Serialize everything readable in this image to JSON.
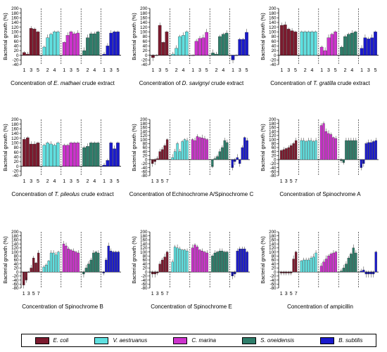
{
  "colors": {
    "E. coli": "#7b1a2e",
    "V. aestruanus": "#5fe0e0",
    "C. marina": "#cc33cc",
    "S. oneidensis": "#2e7d6a",
    "B. subtilis": "#1a1acc"
  },
  "legend": [
    "E. coli",
    "V. aestruanus",
    "C. marina",
    "S. oneidensis",
    "B. subtilis"
  ],
  "chart_data": [
    {
      "type": "bar",
      "ylabel": "Bacterial growth (%)",
      "ylim": [
        -40,
        200
      ],
      "yticks": [
        -40,
        -20,
        0,
        20,
        40,
        60,
        80,
        100,
        120,
        140,
        160,
        180,
        200
      ],
      "title_prefix": "Concentration of ",
      "title_italic": "E. mathaei",
      "title_suffix": " crude extract",
      "series": [
        {
          "name": "E. coli",
          "values": [
            12,
            5,
            115,
            112,
            100
          ],
          "ticklabels": [
            "1",
            "3",
            "5"
          ]
        },
        {
          "name": "V. aestruanus",
          "values": [
            35,
            75,
            90,
            100,
            100
          ],
          "ticklabels": [
            "2",
            "4"
          ]
        },
        {
          "name": "C. marina",
          "values": [
            55,
            85,
            100,
            92,
            95
          ],
          "ticklabels": [
            "1",
            "3",
            "5"
          ]
        },
        {
          "name": "S. oneidensis",
          "values": [
            20,
            75,
            92,
            92,
            100
          ],
          "ticklabels": [
            "2",
            "4"
          ]
        },
        {
          "name": "B. subtilis",
          "values": [
            5,
            40,
            95,
            100,
            100
          ],
          "ticklabels": [
            "1",
            "3",
            "5"
          ]
        }
      ]
    },
    {
      "type": "bar",
      "ylabel": "Bacterial growth (%)",
      "ylim": [
        -40,
        200
      ],
      "yticks": [
        -40,
        -20,
        0,
        20,
        40,
        60,
        80,
        100,
        120,
        140,
        160,
        180,
        200
      ],
      "title_prefix": "Concentration of ",
      "title_italic": "D. savignyi",
      "title_suffix": " crude extract",
      "series": [
        {
          "name": "E. coli",
          "values": [
            -10,
            0,
            128,
            55,
            100
          ],
          "ticklabels": [
            "1",
            "3",
            "5"
          ]
        },
        {
          "name": "V. aestruanus",
          "values": [
            5,
            30,
            80,
            85,
            100
          ],
          "ticklabels": [
            "2",
            "4"
          ]
        },
        {
          "name": "C. marina",
          "values": [
            0,
            60,
            72,
            75,
            98
          ],
          "ticklabels": [
            "1",
            "3",
            "5"
          ]
        },
        {
          "name": "S. oneidensis",
          "values": [
            10,
            5,
            80,
            90,
            95
          ],
          "ticklabels": [
            "2",
            "4"
          ]
        },
        {
          "name": "B. subtilis",
          "values": [
            -20,
            0,
            68,
            68,
            98
          ],
          "ticklabels": [
            "1",
            "3",
            "5"
          ]
        }
      ]
    },
    {
      "type": "bar",
      "ylabel": "Bacterial growth (%)",
      "ylim": [
        -40,
        200
      ],
      "yticks": [
        -40,
        -20,
        0,
        20,
        40,
        60,
        80,
        100,
        120,
        140,
        160,
        180,
        200
      ],
      "title_prefix": "Concentration of ",
      "title_italic": "T. gratilla",
      "title_suffix": " crude extract",
      "series": [
        {
          "name": "E. coli",
          "values": [
            128,
            130,
            112,
            105,
            100
          ],
          "ticklabels": [
            "1",
            "3",
            "5"
          ]
        },
        {
          "name": "V. aestruanus",
          "values": [
            100,
            100,
            100,
            100,
            100
          ],
          "ticklabels": [
            "2",
            "4"
          ]
        },
        {
          "name": "C. marina",
          "values": [
            35,
            20,
            75,
            90,
            100
          ],
          "ticklabels": [
            "1",
            "3",
            "5"
          ]
        },
        {
          "name": "S. oneidensis",
          "values": [
            35,
            80,
            90,
            95,
            100
          ],
          "ticklabels": [
            "2",
            "4"
          ]
        },
        {
          "name": "B. subtilis",
          "values": [
            30,
            75,
            70,
            75,
            100
          ],
          "ticklabels": [
            "1",
            "3",
            "5"
          ]
        }
      ]
    },
    {
      "type": "bar",
      "ylabel": "Bacterial growth (%)",
      "ylim": [
        -40,
        200
      ],
      "yticks": [
        -40,
        -20,
        0,
        20,
        40,
        60,
        80,
        100,
        120,
        140,
        160,
        180,
        200
      ],
      "title_prefix": "Concentration of ",
      "title_italic": "T. pileolus",
      "title_suffix": " crude extract",
      "series": [
        {
          "name": "E. coli",
          "values": [
            115,
            122,
            95,
            95,
            100
          ],
          "ticklabels": [
            "1",
            "3",
            "5"
          ]
        },
        {
          "name": "V. aestruanus",
          "values": [
            90,
            100,
            95,
            90,
            100
          ],
          "ticklabels": [
            "2",
            "4"
          ]
        },
        {
          "name": "C. marina",
          "values": [
            90,
            90,
            100,
            100,
            100
          ],
          "ticklabels": [
            "1",
            "3",
            "5"
          ]
        },
        {
          "name": "S. oneidensis",
          "values": [
            80,
            85,
            100,
            100,
            100
          ],
          "ticklabels": [
            "2",
            "4"
          ]
        },
        {
          "name": "B. subtilis",
          "values": [
            5,
            25,
            100,
            75,
            100
          ],
          "ticklabels": [
            "1",
            "3",
            "5"
          ]
        }
      ]
    },
    {
      "type": "bar",
      "ylabel": "Bacterial growth (%)",
      "ylim": [
        -80,
        200
      ],
      "yticks": [
        -80,
        -60,
        -40,
        -20,
        0,
        20,
        40,
        60,
        80,
        100,
        120,
        140,
        160,
        180,
        200
      ],
      "title_prefix": "Concentration of Echinochrome A/Spinochrome C",
      "title_italic": "",
      "title_suffix": "",
      "series": [
        {
          "name": "E. coli",
          "values": [
            -20,
            -10,
            5,
            40,
            50,
            70,
            100
          ],
          "ticklabels": [
            "1",
            "3",
            "5",
            "7"
          ]
        },
        {
          "name": "V. aestruanus",
          "values": [
            10,
            40,
            80,
            40,
            90,
            100,
            95
          ],
          "ticklabels": []
        },
        {
          "name": "C. marina",
          "values": [
            100,
            95,
            115,
            110,
            108,
            105,
            100
          ],
          "ticklabels": []
        },
        {
          "name": "S. oneidensis",
          "values": [
            -35,
            5,
            15,
            40,
            60,
            95,
            85
          ],
          "ticklabels": []
        },
        {
          "name": "B. subtilis",
          "values": [
            -40,
            -10,
            10,
            -20,
            60,
            110,
            95
          ],
          "ticklabels": []
        }
      ]
    },
    {
      "type": "bar",
      "ylabel": "Bacterial growth (%)",
      "ylim": [
        -80,
        200
      ],
      "yticks": [
        -80,
        -60,
        -40,
        -20,
        0,
        20,
        40,
        60,
        80,
        100,
        120,
        140,
        160,
        180,
        200
      ],
      "title_prefix": "Concentration of Spinochrome A",
      "title_italic": "",
      "title_suffix": "",
      "series": [
        {
          "name": "E. coli",
          "values": [
            45,
            50,
            55,
            60,
            70,
            80,
            95
          ],
          "ticklabels": [
            "1",
            "3",
            "5",
            "7"
          ]
        },
        {
          "name": "V. aestruanus",
          "values": [
            95,
            95,
            90,
            95,
            95,
            90,
            95
          ],
          "ticklabels": []
        },
        {
          "name": "C. marina",
          "values": [
            170,
            180,
            140,
            130,
            125,
            110,
            105
          ],
          "ticklabels": []
        },
        {
          "name": "S. oneidensis",
          "values": [
            -5,
            -15,
            95,
            95,
            95,
            95,
            95
          ],
          "ticklabels": []
        },
        {
          "name": "B. subtilis",
          "values": [
            -40,
            -20,
            80,
            85,
            85,
            90,
            95
          ],
          "ticklabels": []
        }
      ]
    },
    {
      "type": "bar",
      "ylabel": "Bacterial growth (%)",
      "ylim": [
        -80,
        200
      ],
      "yticks": [
        -80,
        -60,
        -40,
        -20,
        0,
        20,
        40,
        60,
        80,
        100,
        120,
        140,
        160,
        180,
        200
      ],
      "title_prefix": "Concentration of Spinochrome B",
      "title_italic": "",
      "title_suffix": "",
      "series": [
        {
          "name": "E. coli",
          "values": [
            -65,
            -40,
            0,
            20,
            70,
            45,
            95
          ],
          "ticklabels": [
            "1",
            "3",
            "5",
            "7"
          ]
        },
        {
          "name": "V. aestruanus",
          "values": [
            25,
            35,
            55,
            95,
            95,
            85,
            100
          ],
          "ticklabels": []
        },
        {
          "name": "C. marina",
          "values": [
            140,
            130,
            115,
            110,
            105,
            100,
            95
          ],
          "ticklabels": []
        },
        {
          "name": "S. oneidensis",
          "values": [
            -10,
            20,
            40,
            60,
            95,
            100,
            95
          ],
          "ticklabels": []
        },
        {
          "name": "B. subtilis",
          "values": [
            -5,
            60,
            130,
            105,
            100,
            100,
            100
          ],
          "ticklabels": []
        }
      ]
    },
    {
      "type": "bar",
      "ylabel": "Bacterial growth (%)",
      "ylim": [
        -80,
        200
      ],
      "yticks": [
        -80,
        -60,
        -40,
        -20,
        0,
        20,
        40,
        60,
        80,
        100,
        120,
        140,
        160,
        180,
        200
      ],
      "title_prefix": "Concentration of Spinochrome E",
      "title_italic": "",
      "title_suffix": "",
      "series": [
        {
          "name": "E. coli",
          "values": [
            -10,
            -10,
            -5,
            40,
            60,
            75,
            100
          ],
          "ticklabels": [
            "1",
            "3",
            "5",
            "7"
          ]
        },
        {
          "name": "V. aestruanus",
          "values": [
            50,
            125,
            120,
            115,
            110,
            110,
            105
          ],
          "ticklabels": []
        },
        {
          "name": "C. marina",
          "values": [
            120,
            135,
            125,
            110,
            105,
            100,
            95
          ],
          "ticklabels": []
        },
        {
          "name": "S. oneidensis",
          "values": [
            80,
            95,
            100,
            105,
            105,
            100,
            100
          ],
          "ticklabels": []
        },
        {
          "name": "B. subtilis",
          "values": [
            -20,
            -10,
            105,
            115,
            115,
            115,
            100
          ],
          "ticklabels": []
        }
      ]
    },
    {
      "type": "bar",
      "ylabel": "Bacterial growth (%)",
      "ylim": [
        -80,
        200
      ],
      "yticks": [
        -80,
        -60,
        -40,
        -20,
        0,
        20,
        40,
        60,
        80,
        100,
        120,
        140,
        160,
        180,
        200
      ],
      "title_prefix": "Concentration of ampicillin",
      "title_italic": "",
      "title_suffix": "",
      "series": [
        {
          "name": "E. coli",
          "values": [
            -5,
            -5,
            -5,
            -5,
            -5,
            65,
            100
          ],
          "ticklabels": [
            "1",
            "3",
            "5",
            "7"
          ]
        },
        {
          "name": "V. aestruanus",
          "values": [
            55,
            60,
            60,
            60,
            70,
            75,
            95
          ],
          "ticklabels": []
        },
        {
          "name": "C. marina",
          "values": [
            30,
            50,
            65,
            80,
            90,
            95,
            100
          ],
          "ticklabels": []
        },
        {
          "name": "S. oneidensis",
          "values": [
            5,
            20,
            40,
            70,
            90,
            120,
            95
          ],
          "ticklabels": []
        },
        {
          "name": "B. subtilis",
          "values": [
            5,
            10,
            -10,
            -10,
            -10,
            -10,
            100
          ],
          "ticklabels": []
        }
      ]
    }
  ]
}
